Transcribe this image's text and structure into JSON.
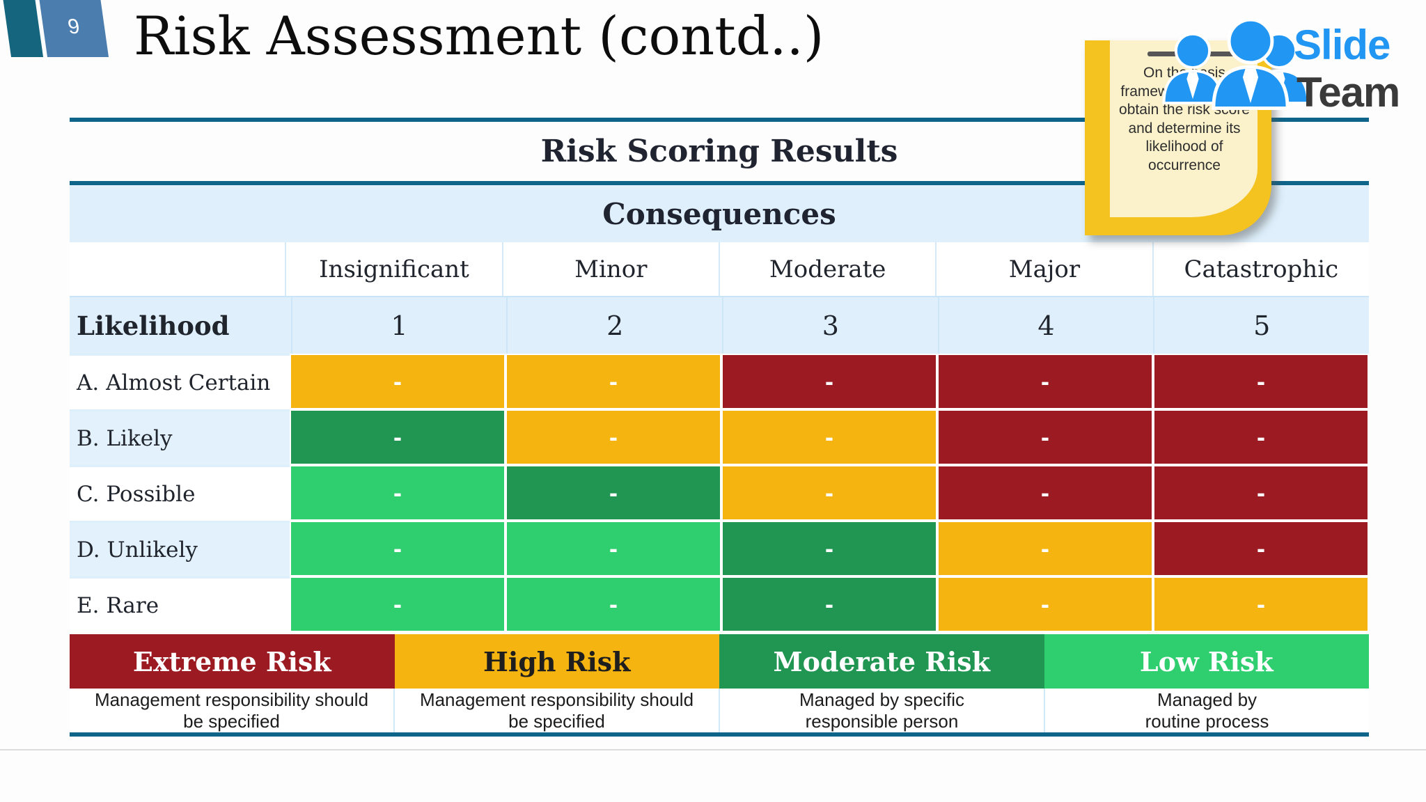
{
  "slide": {
    "page_number": "9",
    "title": "Risk Assessment (contd..)",
    "note_text": "On the basis framework, you can obtain the risk score and determine its likelihood of occurrence",
    "logo": {
      "word1": "Slide",
      "word2": "Team"
    }
  },
  "colors": {
    "teal_line": "#0f6489",
    "light_blue_row": "#dff0fc",
    "badge_dark": "#15657f",
    "badge_light": "#4b7daf",
    "logo_blue": "#2196f3",
    "logo_dark": "#3a3a3a",
    "note_gold": "#f5c320",
    "note_cream": "#fbf2cc",
    "orange": "#f5b40f",
    "red": "#9c1b23",
    "green": "#219653",
    "lightgreen": "#2fce6f"
  },
  "table": {
    "title": "Risk Scoring Results",
    "consequences_label": "Consequences",
    "likelihood_label": "Likelihood",
    "columns": [
      "Insignificant",
      "Minor",
      "Moderate",
      "Major",
      "Catastrophic"
    ],
    "numbers": [
      "1",
      "2",
      "3",
      "4",
      "5"
    ],
    "cell_text": "-",
    "rows": [
      {
        "label": "A. Almost Certain",
        "cells": [
          "orange",
          "orange",
          "red",
          "red",
          "red"
        ]
      },
      {
        "label": "B. Likely",
        "cells": [
          "green",
          "orange",
          "orange",
          "red",
          "red"
        ]
      },
      {
        "label": "C. Possible",
        "cells": [
          "lightgreen",
          "green",
          "orange",
          "red",
          "red"
        ]
      },
      {
        "label": "D. Unlikely",
        "cells": [
          "lightgreen",
          "lightgreen",
          "green",
          "orange",
          "red"
        ]
      },
      {
        "label": "E. Rare",
        "cells": [
          "lightgreen",
          "lightgreen",
          "green",
          "orange",
          "orange"
        ]
      }
    ],
    "legend": [
      {
        "label": "Extreme Risk",
        "color_key": "red",
        "text_color": "#ffffff",
        "desc_line1": "Management responsibility should",
        "desc_line2": "be specified"
      },
      {
        "label": "High Risk",
        "color_key": "orange",
        "text_color": "#1e1e1e",
        "desc_line1": "Management responsibility should",
        "desc_line2": "be specified"
      },
      {
        "label": "Moderate Risk",
        "color_key": "green",
        "text_color": "#ffffff",
        "desc_line1": "Managed by specific",
        "desc_line2": "responsible person"
      },
      {
        "label": "Low Risk",
        "color_key": "lightgreen",
        "text_color": "#ffffff",
        "desc_line1": "Managed by",
        "desc_line2": "routine process"
      }
    ]
  }
}
